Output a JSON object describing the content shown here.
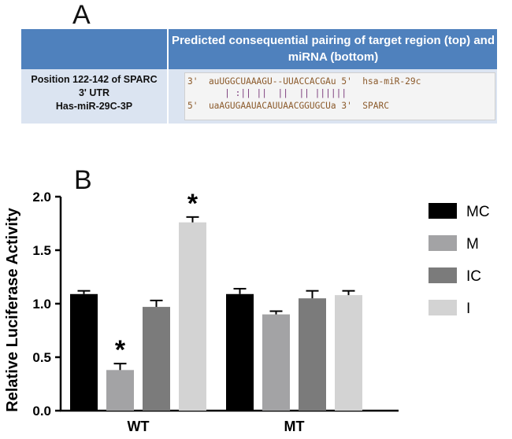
{
  "panel_a": {
    "letter": "A",
    "header": "Predicted  consequential pairing of target region (top) and miRNA (bottom)",
    "left_cell_lines": [
      "Position 122-142 of SPARC",
      "3' UTR",
      "Has-miR-29C-3P"
    ],
    "sequence_lines": [
      "3'  auUGGCUAAAGU--UUACCACGAu 5'  hsa-miR-29c",
      "       | :|| ||  ||  || ||||||",
      "5'  uaAGUGAAUACAUUAACGGUGCUa 3'  SPARC"
    ]
  },
  "panel_b": {
    "letter": "B"
  },
  "chart_data": {
    "type": "bar",
    "ylabel": "Relative Luciferase Activity",
    "ylim": [
      0,
      2.0
    ],
    "yticks": [
      "0.0",
      "0.5",
      "1.0",
      "1.5",
      "2.0"
    ],
    "categories": [
      "WT",
      "MT"
    ],
    "series": [
      {
        "name": "MC",
        "color": "#000000",
        "values": [
          1.09,
          1.09
        ],
        "errors": [
          0.03,
          0.05
        ]
      },
      {
        "name": "M",
        "color": "#a3a3a5",
        "values": [
          0.38,
          0.9
        ],
        "errors": [
          0.06,
          0.03
        ]
      },
      {
        "name": "IC",
        "color": "#7b7b7b",
        "values": [
          0.97,
          1.05
        ],
        "errors": [
          0.06,
          0.07
        ]
      },
      {
        "name": "I",
        "color": "#d3d3d3",
        "values": [
          1.76,
          1.08
        ],
        "errors": [
          0.05,
          0.04
        ]
      }
    ],
    "annotations": [
      {
        "text": "*",
        "category": "WT",
        "series": "M"
      },
      {
        "text": "*",
        "category": "WT",
        "series": "I"
      }
    ],
    "legend_position": "right"
  }
}
